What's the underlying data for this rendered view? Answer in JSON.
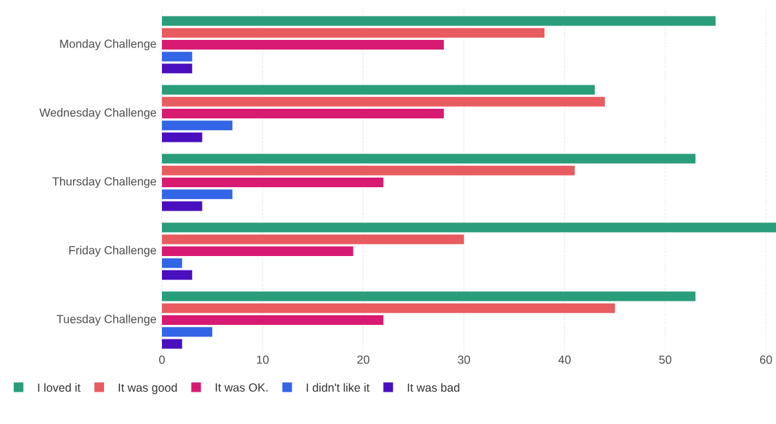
{
  "chart_data": {
    "type": "bar",
    "orientation": "horizontal",
    "categories": [
      "Monday Challenge",
      "Wednesday Challenge",
      "Thursday Challenge",
      "Friday Challenge",
      "Tuesday Challenge"
    ],
    "series": [
      {
        "name": "I loved it",
        "color": "#2a9d7a",
        "values": [
          55,
          43,
          53,
          61,
          53
        ]
      },
      {
        "name": "It was good",
        "color": "#e85c5f",
        "values": [
          38,
          44,
          41,
          30,
          45
        ]
      },
      {
        "name": "It was OK.",
        "color": "#d81b72",
        "values": [
          28,
          28,
          22,
          19,
          22
        ]
      },
      {
        "name": "I didn't like it",
        "color": "#3366e6",
        "values": [
          3,
          7,
          7,
          2,
          5
        ]
      },
      {
        "name": "It was bad",
        "color": "#4a0fbf",
        "values": [
          3,
          4,
          4,
          3,
          2
        ]
      }
    ],
    "xlim": [
      0,
      61
    ],
    "xticks": [
      0,
      10,
      20,
      30,
      40,
      50,
      60
    ],
    "grid": "x",
    "legend": "bottom"
  }
}
